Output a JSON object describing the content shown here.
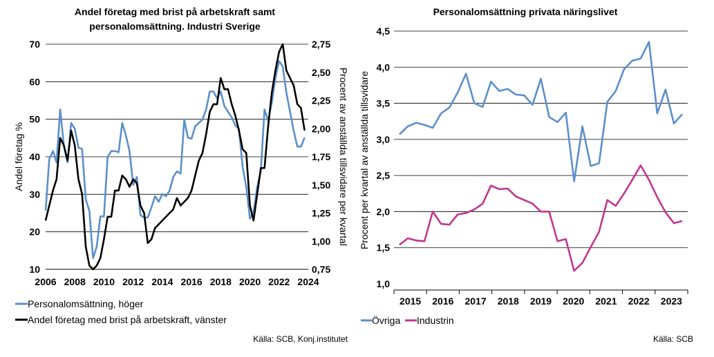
{
  "chart_data": [
    {
      "type": "line",
      "title_lines": [
        "Andel företag med brist på arbetskraft samt",
        "personalomsättning. Industri Sverige"
      ],
      "ylabel_left": "Andel företag  %",
      "ylabel_right": "Procent av anställda tillsvidare per kvartal",
      "x_ticks": [
        "2006",
        "2008",
        "2010",
        "2012",
        "2014",
        "2016",
        "2018",
        "2020",
        "2022",
        "2024"
      ],
      "ylim_left": [
        10,
        70
      ],
      "yticks_left": [
        "10",
        "20",
        "30",
        "40",
        "50",
        "60",
        "70"
      ],
      "ylim_right": [
        0.75,
        2.75
      ],
      "yticks_right": [
        "0,75",
        "1,00",
        "1,25",
        "1,50",
        "1,75",
        "2,00",
        "2,25",
        "2,50",
        "2,75"
      ],
      "grid": "horizontal",
      "legend_position": "bottom",
      "source": "Källa: SCB, Konj.institutet",
      "series": [
        {
          "name": "Personalomsättning, höger",
          "axis": "right",
          "color": "#5b8fcb",
          "x": [
            2006.0,
            2006.25,
            2006.5,
            2006.75,
            2007.0,
            2007.25,
            2007.5,
            2007.75,
            2008.0,
            2008.25,
            2008.5,
            2008.75,
            2009.0,
            2009.25,
            2009.5,
            2009.75,
            2010.0,
            2010.25,
            2010.5,
            2010.75,
            2011.0,
            2011.25,
            2011.5,
            2011.75,
            2012.0,
            2012.25,
            2012.5,
            2012.75,
            2013.0,
            2013.25,
            2013.5,
            2013.75,
            2014.0,
            2014.25,
            2014.5,
            2014.75,
            2015.0,
            2015.25,
            2015.5,
            2015.75,
            2016.0,
            2016.25,
            2016.5,
            2016.75,
            2017.0,
            2017.25,
            2017.5,
            2017.75,
            2018.0,
            2018.25,
            2018.5,
            2018.75,
            2019.0,
            2019.25,
            2019.5,
            2019.75,
            2020.0,
            2020.25,
            2020.5,
            2020.75,
            2021.0,
            2021.25,
            2021.5,
            2021.75,
            2022.0,
            2022.25,
            2022.5,
            2022.75,
            2023.0,
            2023.25,
            2023.5,
            2023.75
          ],
          "values": [
            1.27,
            1.73,
            1.8,
            1.7,
            2.17,
            1.85,
            1.7,
            2.05,
            2.0,
            1.83,
            1.82,
            1.37,
            1.27,
            0.85,
            0.95,
            1.22,
            1.22,
            1.75,
            1.8,
            1.8,
            1.79,
            2.05,
            1.94,
            1.8,
            1.5,
            1.57,
            1.23,
            1.21,
            1.21,
            1.3,
            1.4,
            1.35,
            1.42,
            1.4,
            1.45,
            1.57,
            1.62,
            1.6,
            2.08,
            1.92,
            1.91,
            2.02,
            2.05,
            2.08,
            2.17,
            2.33,
            2.33,
            2.27,
            2.33,
            2.2,
            2.15,
            2.1,
            2.03,
            2.0,
            1.66,
            1.48,
            1.2,
            1.26,
            1.48,
            1.63,
            2.17,
            2.07,
            2.23,
            2.45,
            2.6,
            2.55,
            2.32,
            2.15,
            1.98,
            1.84,
            1.84,
            1.92
          ]
        },
        {
          "name": "Andel företag med brist på arbetskraft, vänster",
          "axis": "left",
          "color": "#000000",
          "x": [
            2006.0,
            2006.25,
            2006.5,
            2006.75,
            2007.0,
            2007.25,
            2007.5,
            2007.75,
            2008.0,
            2008.25,
            2008.5,
            2008.75,
            2009.0,
            2009.25,
            2009.5,
            2009.75,
            2010.0,
            2010.25,
            2010.5,
            2010.75,
            2011.0,
            2011.25,
            2011.5,
            2011.75,
            2012.0,
            2012.25,
            2012.5,
            2012.75,
            2013.0,
            2013.25,
            2013.5,
            2013.75,
            2014.0,
            2014.25,
            2014.5,
            2014.75,
            2015.0,
            2015.25,
            2015.5,
            2015.75,
            2016.0,
            2016.25,
            2016.5,
            2016.75,
            2017.0,
            2017.25,
            2017.5,
            2017.75,
            2018.0,
            2018.25,
            2018.5,
            2018.75,
            2019.0,
            2019.25,
            2019.5,
            2019.75,
            2020.0,
            2020.25,
            2020.5,
            2020.75,
            2021.0,
            2021.25,
            2021.5,
            2021.75,
            2022.0,
            2022.25,
            2022.5,
            2022.75,
            2023.0,
            2023.25,
            2023.5,
            2023.75
          ],
          "values": [
            23,
            27,
            31,
            34,
            45,
            43,
            39,
            47,
            43,
            34,
            30,
            16,
            11,
            10,
            11,
            13,
            18,
            24,
            24,
            31,
            31,
            35,
            34,
            32,
            34,
            33,
            27,
            25,
            17,
            18,
            21,
            22,
            23,
            24,
            25,
            26,
            29,
            27,
            28,
            29,
            31,
            35,
            39,
            41,
            46,
            52,
            54,
            54,
            61,
            58,
            58,
            54,
            51,
            47,
            42,
            41,
            27,
            23,
            30,
            37,
            37,
            48,
            57,
            63,
            68,
            70,
            63,
            61,
            59,
            54,
            53,
            47
          ]
        }
      ]
    },
    {
      "type": "line",
      "title_lines": [
        "Personalomsättning privata näringslivet"
      ],
      "ylabel": "Procent per kvartal av anställda tillsvidare",
      "x_ticks": [
        "2015",
        "2016",
        "2017",
        "2018",
        "2019",
        "2020",
        "2021",
        "2022",
        "2023"
      ],
      "ylim": [
        1.0,
        4.5
      ],
      "yticks": [
        "1,0",
        "1,5",
        "2,0",
        "2,5",
        "3,0",
        "3,5",
        "4,0",
        "4,5"
      ],
      "grid": "horizontal",
      "legend_position": "bottom",
      "source": "Källa: SCB",
      "series": [
        {
          "name": "Övriga",
          "color": "#5b8fcb",
          "values": [
            3.07,
            3.18,
            3.23,
            3.2,
            3.16,
            3.36,
            3.44,
            3.65,
            3.91,
            3.5,
            3.45,
            3.8,
            3.67,
            3.7,
            3.62,
            3.61,
            3.48,
            3.84,
            3.31,
            3.24,
            3.37,
            2.42,
            3.18,
            2.63,
            2.67,
            3.52,
            3.67,
            3.97,
            4.09,
            4.12,
            4.35,
            3.36,
            3.69,
            3.22,
            3.35
          ]
        },
        {
          "name": "Industrin",
          "color": "#c2358f",
          "values": [
            1.54,
            1.63,
            1.6,
            1.59,
            2.0,
            1.83,
            1.82,
            1.96,
            1.98,
            2.03,
            2.11,
            2.36,
            2.31,
            2.32,
            2.21,
            2.16,
            2.11,
            2.0,
            2.0,
            1.59,
            1.62,
            1.18,
            1.29,
            1.51,
            1.72,
            2.16,
            2.08,
            2.25,
            2.44,
            2.64,
            2.44,
            2.2,
            1.99,
            1.84,
            1.87
          ]
        }
      ]
    }
  ]
}
